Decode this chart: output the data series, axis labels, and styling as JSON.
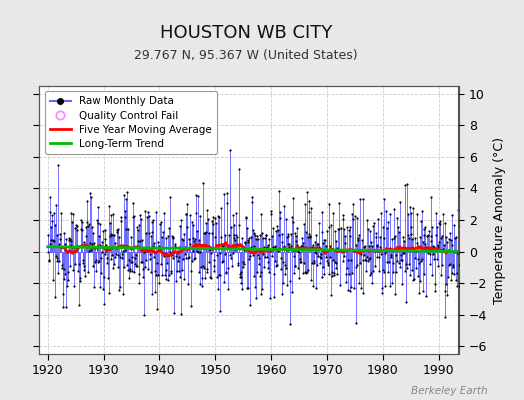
{
  "title": "HOUSTON WB CITY",
  "subtitle": "29.767 N, 95.367 W (United States)",
  "ylabel": "Temperature Anomaly (°C)",
  "watermark": "Berkeley Earth",
  "xlim": [
    1918.5,
    1993.5
  ],
  "ylim": [
    -6.5,
    10.5
  ],
  "yticks": [
    -6,
    -4,
    -2,
    0,
    2,
    4,
    6,
    8,
    10
  ],
  "xticks": [
    1920,
    1930,
    1940,
    1950,
    1960,
    1970,
    1980,
    1990
  ],
  "bar_color": "#6666ff",
  "dot_color": "#000000",
  "ma_color": "#ff0000",
  "trend_color": "#00bb00",
  "bg_color": "#e8e8e8",
  "plot_bg": "#ffffff",
  "seed": 12345,
  "n_months": 888,
  "start_year": 1920,
  "end_year": 1994
}
